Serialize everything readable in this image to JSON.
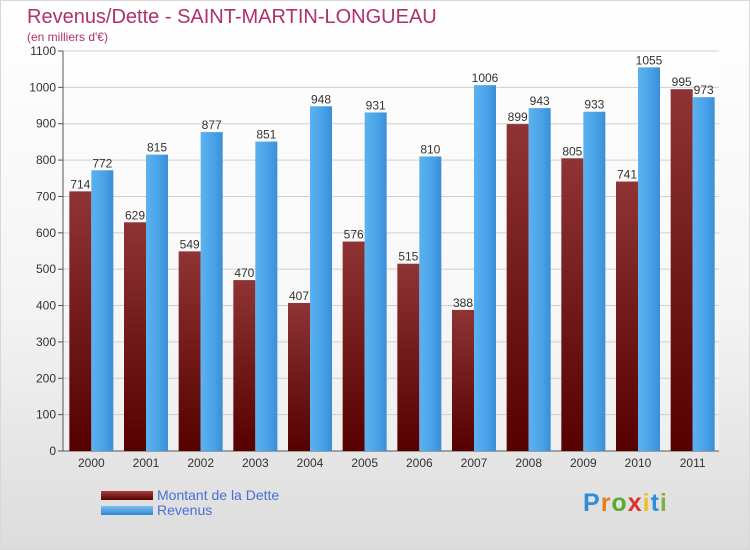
{
  "header": {
    "title": "Revenus/Dette - SAINT-MARTIN-LONGUEAU",
    "subtitle": "(en milliers d'€)"
  },
  "chart_data": {
    "type": "bar",
    "categories": [
      "2000",
      "2001",
      "2002",
      "2003",
      "2004",
      "2005",
      "2006",
      "2007",
      "2008",
      "2009",
      "2010",
      "2011"
    ],
    "series": [
      {
        "name": "Montant de la Dette",
        "values": [
          714,
          629,
          549,
          470,
          407,
          576,
          515,
          388,
          899,
          805,
          741,
          995
        ],
        "color": "#7a1c1c"
      },
      {
        "name": "Revenus",
        "values": [
          772,
          815,
          877,
          851,
          948,
          931,
          810,
          1006,
          943,
          933,
          1055,
          973
        ],
        "color": "#4aa3e8"
      }
    ],
    "yticks": [
      0,
      100,
      200,
      300,
      400,
      500,
      600,
      700,
      800,
      900,
      1000,
      1100
    ],
    "ylim": [
      0,
      1100
    ],
    "grid": true,
    "legend_position": "bottom-left",
    "data_labels": true
  },
  "logo": {
    "letters": [
      "P",
      "r",
      "o",
      "x",
      "i",
      "t",
      "i"
    ],
    "colors": [
      "#2e8fd6",
      "#e87d1e",
      "#5aaa2e",
      "#d9342b",
      "#f0c020",
      "#2e8fd6",
      "#7ab33d"
    ]
  }
}
